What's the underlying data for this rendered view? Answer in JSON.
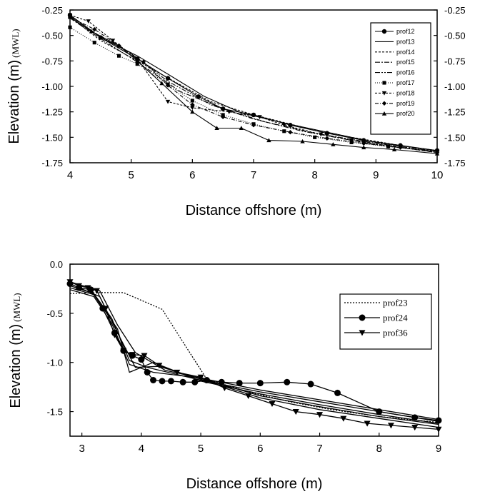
{
  "chart_data": [
    {
      "type": "line",
      "xlabel": "Distance offshore (m)",
      "ylabel": "Elevation (m)",
      "ylabel_unit": "(MWL)",
      "xlim": [
        4,
        10
      ],
      "ylim": [
        -1.75,
        -0.25
      ],
      "x_ticks": [
        "4",
        "5",
        "6",
        "7",
        "8",
        "9",
        "10"
      ],
      "y_ticks": [
        "-0.25",
        "-0.50",
        "-0.75",
        "-1.00",
        "-1.25",
        "-1.50",
        "-1.75"
      ],
      "y_ticks_right": [
        "-0.25",
        "-0.50",
        "-0.75",
        "-1.00",
        "-1.25",
        "-1.50",
        "-1.75"
      ],
      "legend_position": "top-right",
      "grid": false,
      "series": [
        {
          "name": "prof12",
          "marker": "circle",
          "dash": "",
          "x": [
            4.0,
            4.5,
            5.1,
            5.6,
            6.1,
            6.5,
            7.0,
            7.6,
            8.2,
            8.8,
            9.4,
            10.0
          ],
          "y": [
            -0.3,
            -0.52,
            -0.73,
            -0.92,
            -1.1,
            -1.22,
            -1.28,
            -1.38,
            -1.46,
            -1.53,
            -1.58,
            -1.63
          ]
        },
        {
          "name": "prof13",
          "marker": "",
          "dash": "",
          "x": [
            4.0,
            4.5,
            5.1,
            5.6,
            6.2,
            6.8,
            7.5,
            8.2,
            9.0,
            10.0
          ],
          "y": [
            -0.3,
            -0.52,
            -0.7,
            -0.88,
            -1.1,
            -1.26,
            -1.36,
            -1.45,
            -1.55,
            -1.63
          ]
        },
        {
          "name": "prof14",
          "marker": "",
          "dash": "3,2",
          "x": [
            4.0,
            4.5,
            5.1,
            5.7,
            6.3,
            7.0,
            7.8,
            8.6,
            9.3,
            10.0
          ],
          "y": [
            -0.32,
            -0.55,
            -0.75,
            -0.95,
            -1.15,
            -1.28,
            -1.4,
            -1.5,
            -1.57,
            -1.64
          ]
        },
        {
          "name": "prof15",
          "marker": "",
          "dash": "7,2,2,2",
          "x": [
            4.0,
            4.6,
            5.1,
            5.8,
            6.5,
            7.2,
            8.0,
            8.8,
            9.5,
            10.0
          ],
          "y": [
            -0.33,
            -0.57,
            -0.76,
            -1.05,
            -1.22,
            -1.35,
            -1.46,
            -1.54,
            -1.6,
            -1.64
          ]
        },
        {
          "name": "prof16",
          "marker": "",
          "dash": "7,2,2,2,2,2",
          "x": [
            4.0,
            4.5,
            5.0,
            5.6,
            6.3,
            7.0,
            7.8,
            8.6,
            9.4,
            10.0
          ],
          "y": [
            -0.31,
            -0.51,
            -0.68,
            -0.95,
            -1.18,
            -1.32,
            -1.44,
            -1.53,
            -1.6,
            -1.65
          ]
        },
        {
          "name": "prof17",
          "marker": "square",
          "dash": "1,2",
          "x": [
            4.0,
            4.4,
            4.8,
            5.1,
            5.6,
            6.0,
            6.5,
            7.0,
            7.5,
            8.0,
            8.6,
            9.2,
            10.0
          ],
          "y": [
            -0.42,
            -0.57,
            -0.7,
            -0.78,
            -0.98,
            -1.14,
            -1.28,
            -1.37,
            -1.44,
            -1.5,
            -1.55,
            -1.59,
            -1.64
          ]
        },
        {
          "name": "prof18",
          "marker": "triangle-down",
          "dash": "3,2",
          "x": [
            4.0,
            4.3,
            4.7,
            5.1,
            5.6,
            6.0,
            6.6,
            7.1,
            7.5,
            8.1,
            8.6,
            9.2,
            10.0
          ],
          "y": [
            -0.3,
            -0.36,
            -0.55,
            -0.73,
            -1.15,
            -1.21,
            -1.25,
            -1.3,
            -1.38,
            -1.47,
            -1.53,
            -1.59,
            -1.64
          ]
        },
        {
          "name": "prof19",
          "marker": "diamond",
          "dash": "5,2,1,2",
          "x": [
            4.0,
            4.4,
            4.8,
            5.2,
            5.6,
            6.0,
            6.5,
            7.0,
            7.6,
            8.2,
            8.8,
            9.4,
            10.0
          ],
          "y": [
            -0.32,
            -0.44,
            -0.6,
            -0.76,
            -0.99,
            -1.18,
            -1.3,
            -1.38,
            -1.45,
            -1.51,
            -1.56,
            -1.6,
            -1.65
          ]
        },
        {
          "name": "prof20",
          "marker": "triangle-up",
          "dash": "",
          "x": [
            4.0,
            4.35,
            4.8,
            5.1,
            5.5,
            6.0,
            6.4,
            6.8,
            7.25,
            7.8,
            8.3,
            8.8,
            9.3,
            10.0
          ],
          "y": [
            -0.32,
            -0.46,
            -0.6,
            -0.75,
            -0.97,
            -1.25,
            -1.41,
            -1.41,
            -1.53,
            -1.54,
            -1.57,
            -1.6,
            -1.62,
            -1.66
          ]
        }
      ]
    },
    {
      "type": "line",
      "xlabel": "Distance offshore (m)",
      "ylabel": "Elevation (m)",
      "ylabel_unit": "(MWL)",
      "xlim": [
        2.8,
        9.0
      ],
      "ylim": [
        -1.75,
        0.0
      ],
      "x_ticks": [
        "3",
        "4",
        "5",
        "6",
        "7",
        "8",
        "9"
      ],
      "x_tick_values": [
        3,
        4,
        5,
        6,
        7,
        8,
        9
      ],
      "y_ticks": [
        "0.0",
        "-0.5",
        "-1.0",
        "-1.5"
      ],
      "y_tick_values": [
        0.0,
        -0.5,
        -1.0,
        -1.5
      ],
      "legend_position": "top-right",
      "grid": false,
      "series": [
        {
          "name": "prof23",
          "marker": "",
          "dash": "2,2",
          "x": [
            2.8,
            3.2,
            3.7,
            4.35,
            5.1,
            5.8,
            6.5,
            7.2,
            8.0,
            9.0
          ],
          "y": [
            -0.3,
            -0.29,
            -0.29,
            -0.46,
            -1.17,
            -1.3,
            -1.4,
            -1.48,
            -1.55,
            -1.61
          ]
        },
        {
          "name": "prof24",
          "marker": "circle",
          "dash": "",
          "x": [
            2.8,
            2.95,
            3.15,
            3.35,
            3.55,
            3.7,
            3.85,
            4.0,
            4.1,
            4.2,
            4.35,
            4.5,
            4.7,
            4.9,
            5.1,
            5.35,
            5.65,
            6.0,
            6.45,
            6.85,
            7.3,
            8.0,
            8.6,
            9.0
          ],
          "y": [
            -0.2,
            -0.24,
            -0.26,
            -0.45,
            -0.7,
            -0.88,
            -0.93,
            -0.97,
            -1.1,
            -1.18,
            -1.19,
            -1.19,
            -1.2,
            -1.2,
            -1.18,
            -1.2,
            -1.21,
            -1.21,
            -1.2,
            -1.22,
            -1.31,
            -1.5,
            -1.56,
            -1.59
          ]
        },
        {
          "name": "prof36",
          "marker": "triangle-down",
          "dash": "",
          "x": [
            2.8,
            2.95,
            3.1,
            3.25,
            3.4,
            3.55,
            3.7,
            3.85,
            4.05,
            4.3,
            4.6,
            5.0,
            5.4,
            5.8,
            6.2,
            6.6,
            7.0,
            7.4,
            7.8,
            8.2,
            8.6,
            9.0
          ],
          "y": [
            -0.18,
            -0.22,
            -0.24,
            -0.27,
            -0.45,
            -0.72,
            -0.88,
            -0.92,
            -0.93,
            -1.03,
            -1.1,
            -1.15,
            -1.26,
            -1.34,
            -1.42,
            -1.5,
            -1.53,
            -1.57,
            -1.62,
            -1.64,
            -1.66,
            -1.68
          ]
        },
        {
          "name": "",
          "marker": "",
          "dash": "",
          "x": [
            2.8,
            3.2,
            3.5,
            3.8,
            4.2,
            5.0,
            6.0,
            7.0,
            8.0,
            9.0
          ],
          "y": [
            -0.26,
            -0.33,
            -0.6,
            -1.02,
            -1.1,
            -1.16,
            -1.34,
            -1.45,
            -1.55,
            -1.63
          ]
        },
        {
          "name": "",
          "marker": "",
          "dash": "",
          "x": [
            2.8,
            3.2,
            3.5,
            3.8,
            4.1,
            5.0,
            6.0,
            7.0,
            8.0,
            9.0
          ],
          "y": [
            -0.22,
            -0.3,
            -0.55,
            -0.98,
            -1.05,
            -1.18,
            -1.3,
            -1.4,
            -1.5,
            -1.6
          ]
        },
        {
          "name": "",
          "marker": "",
          "dash": "",
          "x": [
            2.8,
            3.3,
            3.6,
            3.9,
            4.3,
            5.0,
            6.0,
            7.0,
            8.0,
            9.0
          ],
          "y": [
            -0.2,
            -0.33,
            -0.7,
            -1.05,
            -1.04,
            -1.17,
            -1.36,
            -1.48,
            -1.57,
            -1.66
          ]
        },
        {
          "name": "",
          "marker": "",
          "dash": "",
          "x": [
            2.8,
            3.2,
            3.6,
            3.8,
            4.2,
            5.0,
            6.0,
            7.0,
            8.0,
            9.0
          ],
          "y": [
            -0.24,
            -0.31,
            -0.66,
            -1.1,
            -1.0,
            -1.19,
            -1.32,
            -1.43,
            -1.53,
            -1.62
          ]
        },
        {
          "name": "",
          "marker": "",
          "dash": "",
          "x": [
            2.8,
            3.3,
            3.6,
            3.9,
            4.4,
            5.0,
            6.0,
            7.0,
            8.0,
            9.0
          ],
          "y": [
            -0.18,
            -0.27,
            -0.62,
            -0.9,
            -1.08,
            -1.16,
            -1.28,
            -1.38,
            -1.48,
            -1.58
          ]
        }
      ]
    }
  ]
}
